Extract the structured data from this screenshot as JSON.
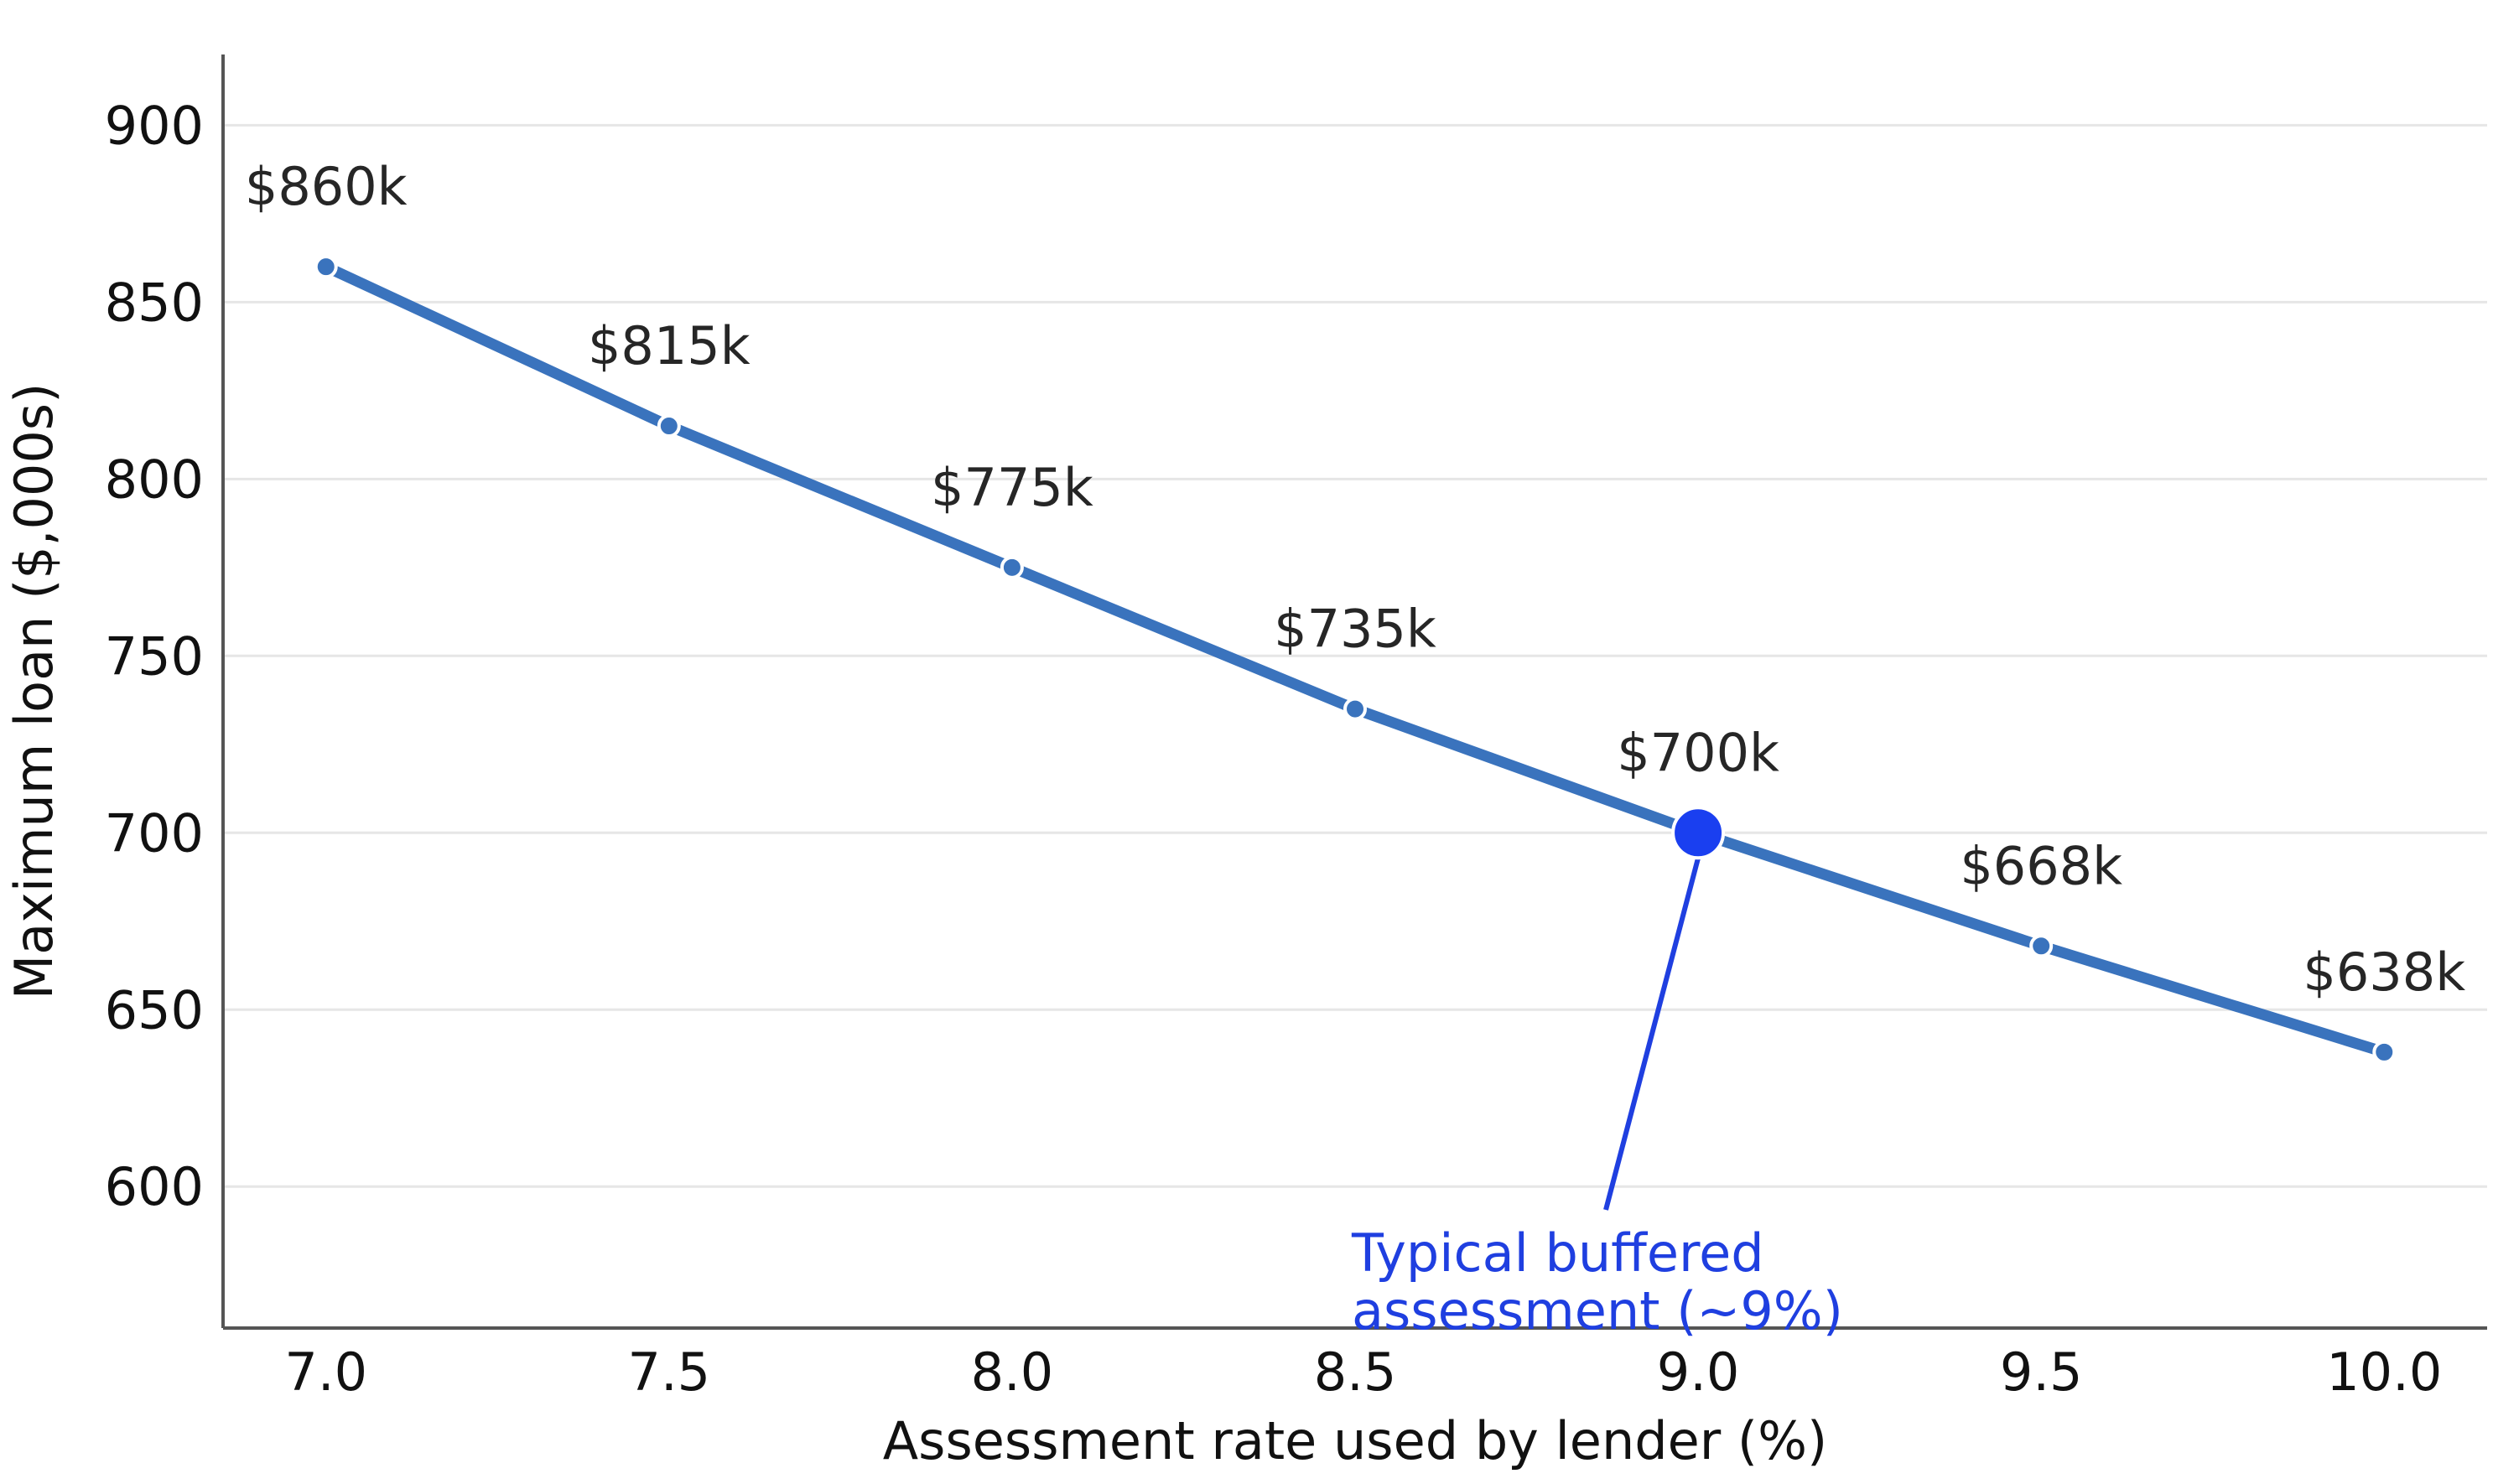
{
  "chart_data": {
    "type": "line",
    "title": "",
    "xlabel": "Assessment rate used by lender (%)",
    "ylabel": "Maximum loan ($,000s)",
    "x": [
      7.0,
      7.5,
      8.0,
      8.5,
      9.0,
      9.5,
      10.0
    ],
    "series": [
      {
        "values": [
          860,
          815,
          775,
          735,
          700,
          668,
          638
        ]
      }
    ],
    "data_labels": [
      "$860k",
      "$815k",
      "$775k",
      "$735k",
      "$700k",
      "$668k",
      "$638k"
    ],
    "xticks": [
      "7.0",
      "7.5",
      "8.0",
      "8.5",
      "9.0",
      "9.5",
      "10.0"
    ],
    "yticks": [
      "600",
      "650",
      "700",
      "750",
      "800",
      "850",
      "900"
    ],
    "xlim": [
      6.85,
      10.15
    ],
    "ylim": [
      560,
      920
    ],
    "grid": "horizontal",
    "legend": "none",
    "highlight": {
      "x": 9.0,
      "y": 700,
      "text_lines": [
        "Typical buffered",
        "assessment (~9%)"
      ]
    },
    "colors": {
      "line": "#3a73bd",
      "highlight": "#1a3ff0",
      "annotation": "#1f3fe0",
      "grid": "#e6e6e6",
      "axis": "#555555"
    }
  }
}
